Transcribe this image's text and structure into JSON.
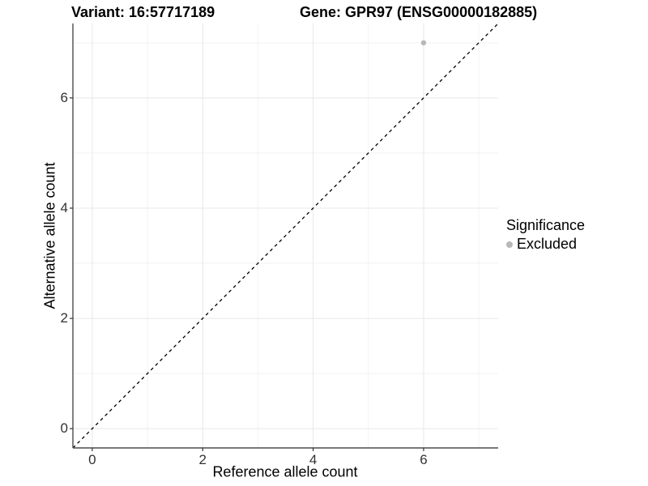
{
  "header": {
    "variant_title": "Variant: 16:57717189",
    "gene_title": "Gene: GPR97 (ENSG00000182885)"
  },
  "legend": {
    "title": "Significance",
    "items": [
      {
        "label": "Excluded",
        "color": "#b8b8b8"
      }
    ]
  },
  "colors": {
    "background": "#ffffff",
    "grid_major": "#e8e8e8",
    "grid_minor": "#f2f2f2",
    "axis_line": "#4d4d4d",
    "tick_mark": "#333333",
    "tick_label": "#333333",
    "dashed_line": "#000000",
    "point": "#b8b8b8",
    "text": "#000000"
  },
  "chart_data": {
    "type": "scatter",
    "title": "Variant: 16:57717189    Gene: GPR97 (ENSG00000182885)",
    "xlabel": "Reference allele count",
    "ylabel": "Alternative allele count",
    "xlim": [
      -0.35,
      7.35
    ],
    "ylim": [
      -0.35,
      7.35
    ],
    "x_ticks": [
      0,
      2,
      4,
      6
    ],
    "y_ticks": [
      0,
      2,
      4,
      6
    ],
    "x_minor_ticks": [
      1,
      3,
      5,
      7
    ],
    "y_minor_ticks": [
      1,
      3,
      5,
      7
    ],
    "grid": true,
    "legend_position": "right",
    "legend_title": "Significance",
    "series": [
      {
        "name": "Excluded",
        "color": "#b8b8b8",
        "points": [
          [
            6,
            7
          ]
        ]
      }
    ],
    "reference_line": {
      "kind": "identity",
      "from": [
        -0.35,
        -0.35
      ],
      "to": [
        7.35,
        7.35
      ],
      "style": "dashed",
      "color": "#000000"
    }
  }
}
